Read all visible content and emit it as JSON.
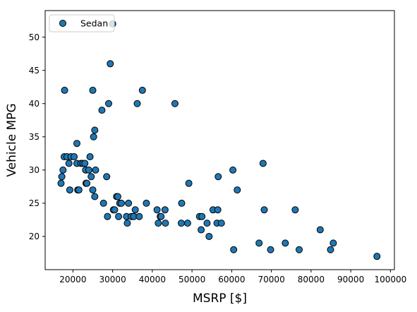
{
  "chart_data": {
    "type": "scatter",
    "xlabel": "MSRP [$]",
    "ylabel": "Vehicle MPG",
    "xlim": [
      13000,
      101000
    ],
    "ylim": [
      15,
      54
    ],
    "xticks": [
      20000,
      30000,
      40000,
      50000,
      60000,
      70000,
      80000,
      90000,
      100000
    ],
    "yticks": [
      20,
      25,
      30,
      35,
      40,
      45,
      50
    ],
    "grid": false,
    "legend_position": "top-left",
    "marker_color": "#1f77b4",
    "marker_edge": "#000000",
    "series": [
      {
        "name": "Sedan",
        "points": [
          [
            17000,
            28
          ],
          [
            17200,
            29
          ],
          [
            17500,
            30
          ],
          [
            17800,
            32
          ],
          [
            17900,
            42
          ],
          [
            18500,
            32
          ],
          [
            19000,
            31
          ],
          [
            19200,
            27
          ],
          [
            19500,
            32
          ],
          [
            20300,
            32
          ],
          [
            21000,
            31
          ],
          [
            21000,
            34
          ],
          [
            21200,
            27
          ],
          [
            21500,
            27
          ],
          [
            22000,
            31
          ],
          [
            22500,
            31
          ],
          [
            23000,
            31
          ],
          [
            23200,
            30
          ],
          [
            23300,
            28
          ],
          [
            23500,
            28
          ],
          [
            24000,
            30
          ],
          [
            24300,
            32
          ],
          [
            24600,
            29
          ],
          [
            25000,
            27
          ],
          [
            25000,
            42
          ],
          [
            25200,
            35
          ],
          [
            25500,
            26
          ],
          [
            25500,
            36
          ],
          [
            25700,
            30
          ],
          [
            27300,
            39
          ],
          [
            27700,
            25
          ],
          [
            28500,
            29
          ],
          [
            28700,
            23
          ],
          [
            29000,
            40
          ],
          [
            29400,
            46
          ],
          [
            30000,
            52
          ],
          [
            30200,
            24
          ],
          [
            30500,
            24
          ],
          [
            31000,
            26
          ],
          [
            31300,
            26
          ],
          [
            31500,
            23
          ],
          [
            31800,
            25
          ],
          [
            32200,
            25
          ],
          [
            33500,
            23
          ],
          [
            33700,
            22
          ],
          [
            34000,
            25
          ],
          [
            34700,
            23
          ],
          [
            35300,
            23
          ],
          [
            35700,
            24
          ],
          [
            36200,
            40
          ],
          [
            36700,
            23
          ],
          [
            37500,
            42
          ],
          [
            38500,
            25
          ],
          [
            41200,
            24
          ],
          [
            41500,
            22
          ],
          [
            42000,
            23
          ],
          [
            42200,
            23
          ],
          [
            43200,
            24
          ],
          [
            43300,
            22
          ],
          [
            45700,
            40
          ],
          [
            47300,
            22
          ],
          [
            47400,
            25
          ],
          [
            48900,
            22
          ],
          [
            49200,
            28
          ],
          [
            51900,
            23
          ],
          [
            52300,
            21
          ],
          [
            52500,
            23
          ],
          [
            53800,
            22
          ],
          [
            54300,
            20
          ],
          [
            55300,
            24
          ],
          [
            56300,
            22
          ],
          [
            56500,
            24
          ],
          [
            56600,
            29
          ],
          [
            57400,
            22
          ],
          [
            60300,
            30
          ],
          [
            60500,
            18
          ],
          [
            61400,
            27
          ],
          [
            66900,
            19
          ],
          [
            67900,
            31
          ],
          [
            68200,
            24
          ],
          [
            69800,
            18
          ],
          [
            73500,
            19
          ],
          [
            76000,
            24
          ],
          [
            77000,
            18
          ],
          [
            82300,
            21
          ],
          [
            84900,
            18
          ],
          [
            85600,
            19
          ],
          [
            96600,
            17
          ]
        ]
      }
    ]
  }
}
